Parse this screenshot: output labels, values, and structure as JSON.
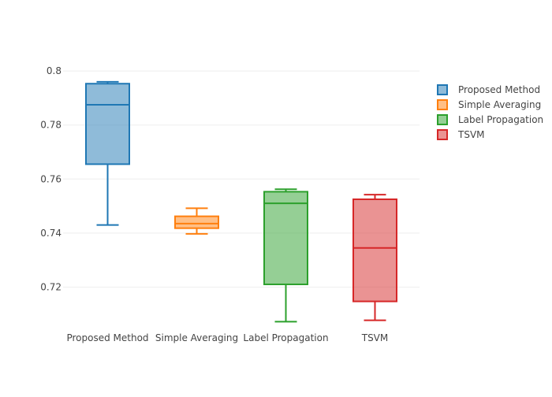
{
  "chart_data": {
    "type": "box",
    "categories": [
      "Proposed Method",
      "Simple Averaging",
      "Label Propagation",
      "TSVM"
    ],
    "series": [
      {
        "name": "Proposed Method",
        "color": "#1f77b4",
        "min": 0.743,
        "q1": 0.7655,
        "median": 0.7875,
        "q3": 0.7953,
        "max": 0.796
      },
      {
        "name": "Simple Averaging",
        "color": "#ff7f0e",
        "min": 0.7397,
        "q1": 0.7418,
        "median": 0.7435,
        "q3": 0.7462,
        "max": 0.7492
      },
      {
        "name": "Label Propagation",
        "color": "#2ca02c",
        "min": 0.7072,
        "q1": 0.721,
        "median": 0.751,
        "q3": 0.7553,
        "max": 0.7562
      },
      {
        "name": "TSVM",
        "color": "#d62728",
        "min": 0.7077,
        "q1": 0.7147,
        "median": 0.7345,
        "q3": 0.7525,
        "max": 0.7542
      }
    ],
    "y_ticks": [
      0.72,
      0.74,
      0.76,
      0.78,
      0.8
    ],
    "y_tick_labels": [
      "0.72",
      "0.74",
      "0.76",
      "0.78",
      "0.8"
    ],
    "ylim": [
      0.7038,
      0.8012
    ],
    "grid": true,
    "legend_position": "top-right",
    "title": "",
    "xlabel": "",
    "ylabel": ""
  }
}
